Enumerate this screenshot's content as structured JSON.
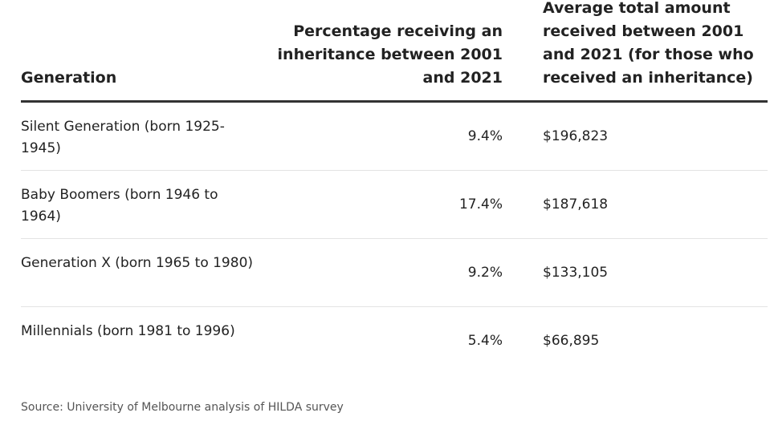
{
  "table": {
    "headers": {
      "generation": "Generation",
      "percentage": "Percentage receiving an inheritance between 2001 and 2021",
      "amount": "Average total amount received between 2001 and 2021 (for those who received an inheritance)"
    },
    "rows": [
      {
        "generation": "Silent Generation (born 1925-1945)",
        "percentage": "9.4%",
        "amount": "$196,823"
      },
      {
        "generation": "Baby Boomers (born 1946 to 1964)",
        "percentage": "17.4%",
        "amount": "$187,618"
      },
      {
        "generation": "Generation X (born 1965 to 1980)",
        "percentage": "9.2%",
        "amount": "$133,105"
      },
      {
        "generation": "Millennials (born 1981 to 1996)",
        "percentage": "5.4%",
        "amount": "$66,895"
      }
    ]
  },
  "source": "Source: University of Melbourne analysis of HILDA survey"
}
